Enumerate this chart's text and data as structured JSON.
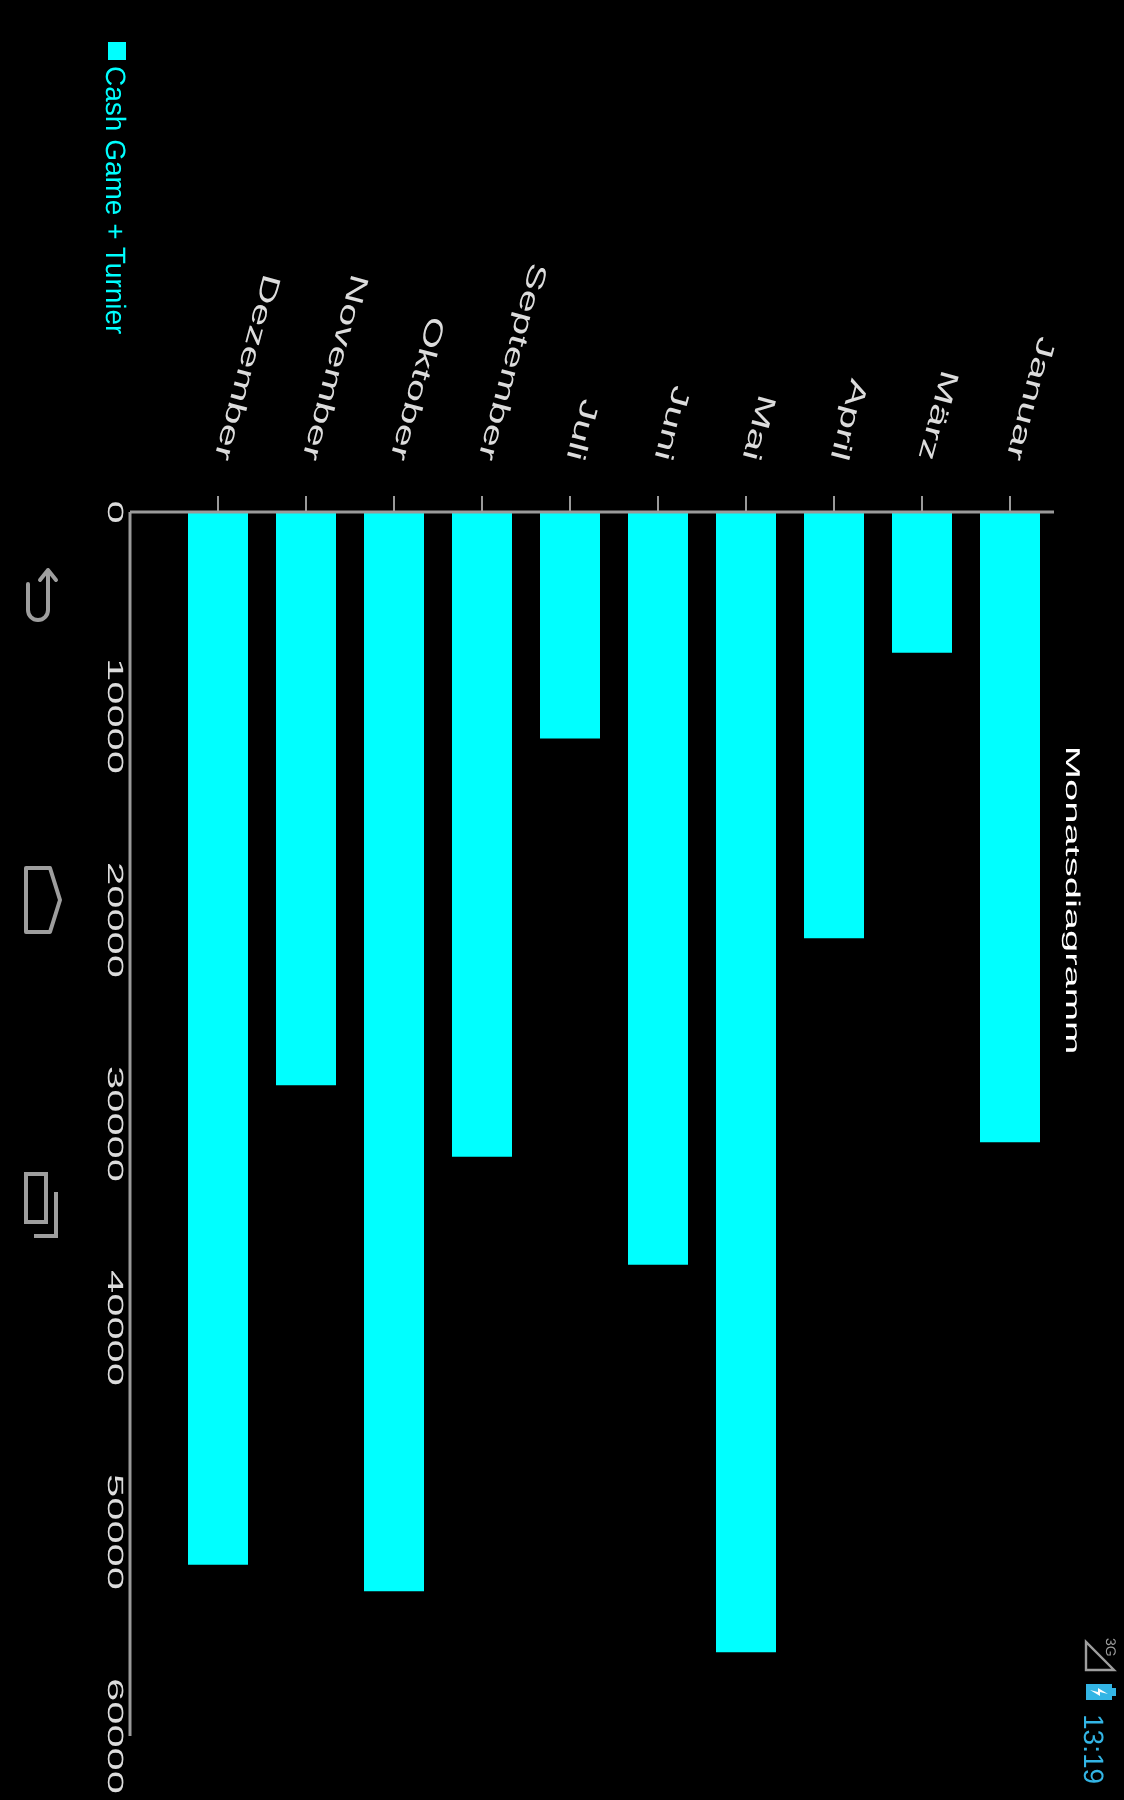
{
  "chart_data": {
    "type": "bar",
    "title": "Monatsdiagramm",
    "categories": [
      "Dezember",
      "November",
      "Oktober",
      "September",
      "Juli",
      "Juni",
      "Mai",
      "April",
      "März",
      "Januar"
    ],
    "series": [
      {
        "name": "Cash Game + Turnier",
        "color": "#00ffff",
        "values": [
          51600,
          28100,
          52900,
          31600,
          11100,
          36900,
          55900,
          20900,
          6900,
          30900
        ]
      }
    ],
    "ylim": [
      60000,
      0
    ],
    "yticks": [
      0,
      10000,
      20000,
      30000,
      40000,
      50000,
      60000
    ],
    "legend": "top left",
    "annotations": [
      "3G",
      "13:19"
    ]
  }
}
